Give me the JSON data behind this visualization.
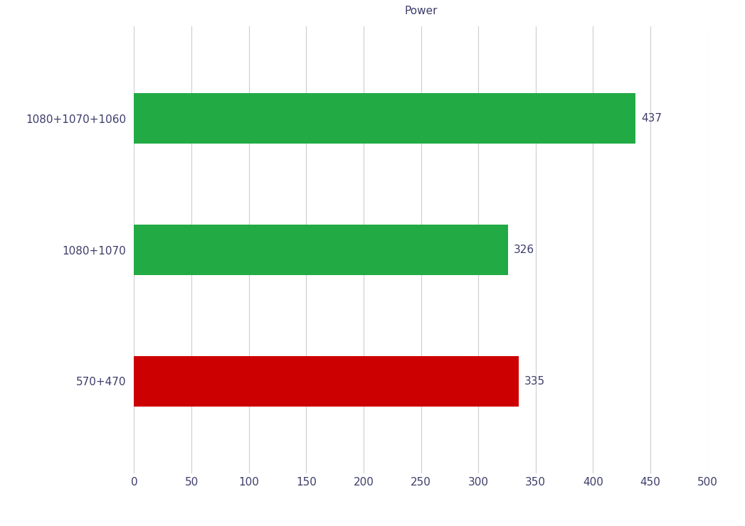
{
  "title": "Power",
  "categories": [
    "570+470",
    "1080+1070",
    "1080+1070+1060"
  ],
  "values": [
    335,
    326,
    437
  ],
  "bar_colors": [
    "#cc0000",
    "#22aa44",
    "#22aa44"
  ],
  "xlim": [
    0,
    500
  ],
  "xticks": [
    0,
    50,
    100,
    150,
    200,
    250,
    300,
    350,
    400,
    450,
    500
  ],
  "bar_labels": [
    "335",
    "326",
    "437"
  ],
  "title_fontsize": 11,
  "tick_label_fontsize": 11,
  "label_fontsize": 11,
  "background_color": "#ffffff",
  "grid_color": "#cccccc",
  "text_color": "#3d3d6b",
  "bar_height": 0.38
}
